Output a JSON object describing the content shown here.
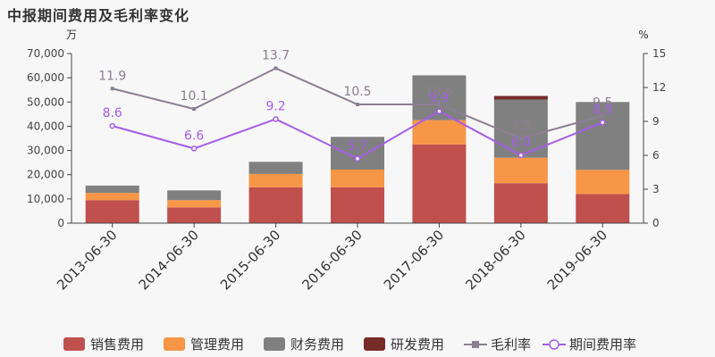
{
  "chart_data": {
    "type": "bar",
    "title": "中报期间费用及毛利率变化",
    "left_unit": "万",
    "right_unit": "%",
    "categories": [
      "2013-06-30",
      "2014-06-30",
      "2015-06-30",
      "2016-06-30",
      "2017-06-30",
      "2018-06-30",
      "2019-06-30"
    ],
    "stacked": true,
    "ylim": [
      0,
      70000
    ],
    "yticks": [
      0,
      10000,
      20000,
      30000,
      40000,
      50000,
      60000,
      70000
    ],
    "ytick_labels": [
      "0",
      "10,000",
      "20,000",
      "30,000",
      "40,000",
      "50,000",
      "60,000",
      "70,000"
    ],
    "y2lim": [
      0,
      15
    ],
    "y2ticks": [
      0,
      3,
      6,
      9,
      12,
      15
    ],
    "series": [
      {
        "name": "销售费用",
        "type": "bar",
        "color": "#c0504d",
        "values": [
          9500,
          6500,
          14800,
          14800,
          32500,
          16500,
          12000
        ]
      },
      {
        "name": "管理费用",
        "type": "bar",
        "color": "#f79646",
        "values": [
          3000,
          3000,
          5500,
          7300,
          10000,
          10500,
          10000
        ]
      },
      {
        "name": "财务费用",
        "type": "bar",
        "color": "#808080",
        "values": [
          3000,
          4000,
          5000,
          13500,
          18500,
          24000,
          28000
        ]
      },
      {
        "name": "研发费用",
        "type": "bar",
        "color": "#772c2a",
        "values": [
          0,
          0,
          0,
          0,
          0,
          1500,
          0
        ]
      },
      {
        "name": "毛利率",
        "type": "line",
        "axis": "right",
        "color": "#8c7e93",
        "values": [
          11.9,
          10.1,
          13.7,
          10.5,
          10.5,
          7.5,
          9.5
        ],
        "labels": [
          "11.9",
          "10.1",
          "13.7",
          "10.5",
          "10.5",
          "7.5",
          "9.5"
        ]
      },
      {
        "name": "期间费用率",
        "type": "line",
        "axis": "right",
        "color": "#a55de8",
        "values": [
          8.6,
          6.6,
          9.2,
          5.7,
          9.9,
          6.0,
          8.9
        ],
        "labels": [
          "8.6",
          "6.6",
          "9.2",
          "5.7",
          "9.9",
          "6.0",
          "8.9"
        ]
      }
    ],
    "legend_position": "bottom-center",
    "grid": false
  }
}
